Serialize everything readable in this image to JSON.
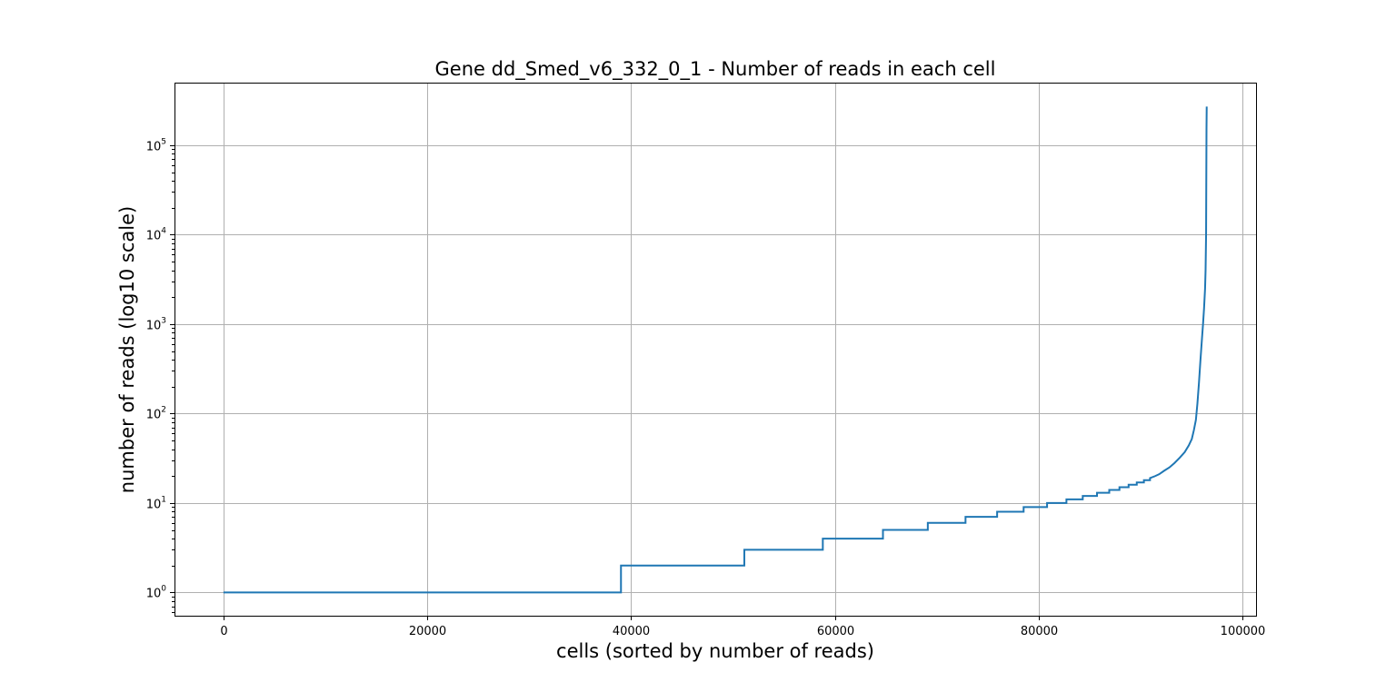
{
  "chart_data": {
    "type": "line",
    "title": "Gene dd_Smed_v6_332_0_1 - Number of reads in each cell",
    "xlabel": "cells (sorted by number of reads)",
    "ylabel": "number of reads (log10 scale)",
    "xlim": [
      -4800,
      101300
    ],
    "ylim": [
      0.55,
      500000
    ],
    "yscale": "log",
    "grid": true,
    "line_color": "#1f77b4",
    "x_ticks": [
      {
        "value": 0,
        "label": "0"
      },
      {
        "value": 20000,
        "label": "20000"
      },
      {
        "value": 40000,
        "label": "40000"
      },
      {
        "value": 60000,
        "label": "60000"
      },
      {
        "value": 80000,
        "label": "80000"
      },
      {
        "value": 100000,
        "label": "100000"
      }
    ],
    "y_ticks": [
      {
        "value": 1,
        "base": "10",
        "exp": "0"
      },
      {
        "value": 10,
        "base": "10",
        "exp": "1"
      },
      {
        "value": 100,
        "base": "10",
        "exp": "2"
      },
      {
        "value": 1000,
        "base": "10",
        "exp": "3"
      },
      {
        "value": 10000,
        "base": "10",
        "exp": "4"
      },
      {
        "value": 100000,
        "base": "10",
        "exp": "5"
      }
    ],
    "series": [
      {
        "x": [
          0,
          39000,
          39000,
          51100,
          51100,
          58800,
          58800,
          64700,
          64700,
          69100,
          69100,
          72800,
          72800,
          75900,
          75900,
          78500,
          78500,
          80800,
          80800,
          82700,
          82700,
          84300,
          84300,
          85700,
          85700,
          86900,
          86900,
          87900,
          87900,
          88800,
          88800,
          89600,
          89600,
          90300,
          90300,
          90900,
          90900,
          91400,
          91800,
          92300,
          92800,
          93300,
          93800,
          94300,
          94700,
          95000,
          95200,
          95400,
          95550,
          95700,
          95850,
          96000,
          96100,
          96200,
          96300,
          96350,
          96400,
          96420,
          96440,
          96460
        ],
        "y": [
          1,
          1,
          2,
          2,
          3,
          3,
          4,
          4,
          5,
          5,
          6,
          6,
          7,
          7,
          8,
          8,
          9,
          9,
          10,
          10,
          11,
          11,
          12,
          12,
          13,
          13,
          14,
          14,
          15,
          15,
          16,
          16,
          17,
          17,
          18,
          18,
          19,
          20,
          21,
          23,
          25,
          28,
          32,
          37,
          44,
          52,
          65,
          85,
          130,
          220,
          400,
          700,
          1000,
          1500,
          2500,
          4000,
          10000,
          40000,
          150000,
          270000
        ]
      }
    ]
  }
}
